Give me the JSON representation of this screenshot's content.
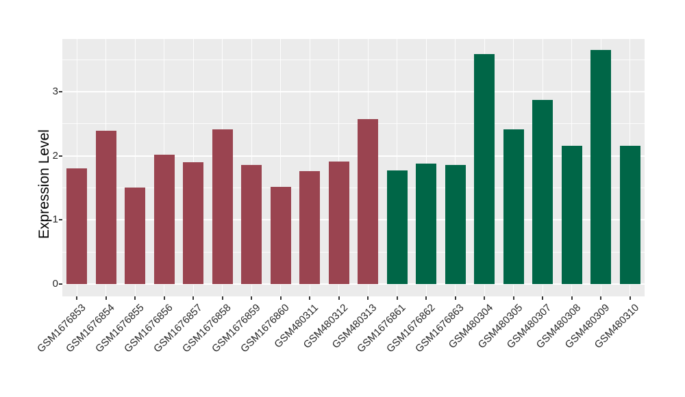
{
  "figure": {
    "background": "#ffffff",
    "panel_background": "#ebebeb",
    "gridline_color": "#ffffff",
    "tick_color": "#333333",
    "text_color": "#262626"
  },
  "y_axis": {
    "title": "Expression Level",
    "tick_labels": [
      "0",
      "1",
      "2",
      "3"
    ]
  },
  "chart_data": {
    "type": "bar",
    "title": "",
    "xlabel": "",
    "ylabel": "Expression Level",
    "ylim": [
      0,
      3.82
    ],
    "yticks": [
      0,
      1,
      2,
      3
    ],
    "yticks_minor": [
      0.5,
      1.5,
      2.5,
      3.5
    ],
    "grid": true,
    "legend": false,
    "categories": [
      "GSM1676853",
      "GSM1676854",
      "GSM1676855",
      "GSM1676856",
      "GSM1676857",
      "GSM1676858",
      "GSM1676859",
      "GSM1676860",
      "GSM480311",
      "GSM480312",
      "GSM480313",
      "GSM1676861",
      "GSM1676862",
      "GSM1676863",
      "GSM480304",
      "GSM480305",
      "GSM480307",
      "GSM480308",
      "GSM480309",
      "GSM480310"
    ],
    "values": [
      1.8,
      2.39,
      1.51,
      2.02,
      1.9,
      2.41,
      1.86,
      1.52,
      1.76,
      1.91,
      2.57,
      1.77,
      1.88,
      1.86,
      3.59,
      2.41,
      2.87,
      2.16,
      3.65,
      2.16
    ],
    "bar_colors": [
      "#9a4450",
      "#9a4450",
      "#9a4450",
      "#9a4450",
      "#9a4450",
      "#9a4450",
      "#9a4450",
      "#9a4450",
      "#9a4450",
      "#9a4450",
      "#9a4450",
      "#006647",
      "#006647",
      "#006647",
      "#006647",
      "#006647",
      "#006647",
      "#006647",
      "#006647",
      "#006647"
    ],
    "group_colors": {
      "group1_red": "#9a4450",
      "group2_green": "#006647"
    }
  }
}
